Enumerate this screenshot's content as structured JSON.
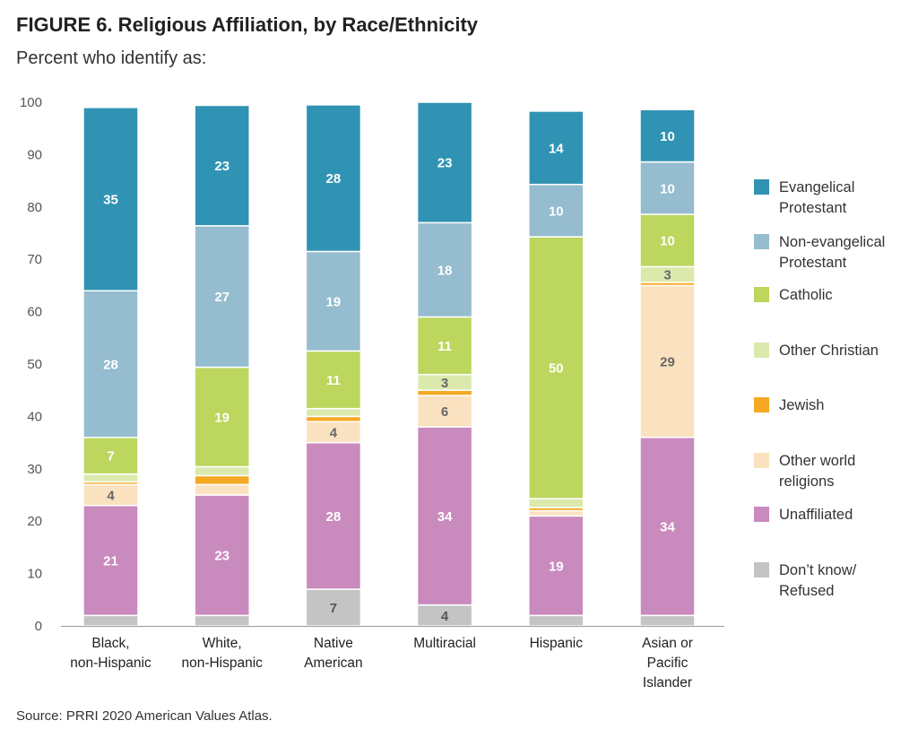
{
  "chart_data": {
    "type": "bar",
    "stacked": true,
    "title": "FIGURE 6.  Religious Affiliation, by Race/Ethnicity",
    "subtitle": "Percent who identify as:",
    "source": "Source: PRRI 2020 American Values Atlas.",
    "ylim": [
      0,
      100
    ],
    "yticks": [
      0,
      10,
      20,
      30,
      40,
      50,
      60,
      70,
      80,
      90,
      100
    ],
    "categories": [
      [
        "Black,",
        "non-Hispanic"
      ],
      [
        "White,",
        "non-Hispanic"
      ],
      [
        "Native",
        "American"
      ],
      [
        "Multiracial"
      ],
      [
        "Hispanic"
      ],
      [
        "Asian or",
        "Pacific",
        "Islander"
      ]
    ],
    "series": [
      {
        "name": [
          "Don’t know/",
          "Refused"
        ],
        "color": "#c4c4c4",
        "label_color": "#555555",
        "values": [
          2,
          2,
          7,
          4,
          2,
          2
        ],
        "labels": [
          "",
          "",
          "7",
          "4",
          "",
          ""
        ]
      },
      {
        "name": [
          "Unaffiliated"
        ],
        "color": "#c98abe",
        "label_color": "#ffffff",
        "values": [
          21,
          23,
          28,
          34,
          19,
          34
        ],
        "labels": [
          "21",
          "23",
          "28",
          "34",
          "19",
          "34"
        ]
      },
      {
        "name": [
          "Other world",
          "religions"
        ],
        "color": "#fae2c0",
        "label_color": "#666666",
        "values": [
          4,
          2,
          4,
          6,
          1,
          29
        ],
        "labels": [
          "4",
          "",
          "4",
          "6",
          "",
          "29"
        ]
      },
      {
        "name": [
          "Jewish"
        ],
        "color": "#f5a821",
        "label_color": "#555555",
        "values": [
          0.5,
          1.7,
          1,
          1,
          0.6,
          0.6
        ],
        "labels": [
          "",
          "",
          "",
          "",
          "",
          ""
        ]
      },
      {
        "name": [
          "Other Christian"
        ],
        "color": "#dbe9ad",
        "label_color": "#666666",
        "values": [
          1.5,
          1.7,
          1.5,
          3,
          1.7,
          3
        ],
        "labels": [
          "",
          "",
          "",
          "3",
          "",
          "3"
        ]
      },
      {
        "name": [
          "Catholic"
        ],
        "color": "#bcd65e",
        "label_color": "#ffffff",
        "values": [
          7,
          19,
          11,
          11,
          50,
          10
        ],
        "labels": [
          "7",
          "19",
          "11",
          "11",
          "50",
          "10"
        ]
      },
      {
        "name": [
          "Non-evangelical",
          "Protestant"
        ],
        "color": "#95bccf",
        "label_color": "#ffffff",
        "values": [
          28,
          27,
          19,
          18,
          10,
          10
        ],
        "labels": [
          "28",
          "27",
          "19",
          "18",
          "10",
          "10"
        ]
      },
      {
        "name": [
          "Evangelical",
          "Protestant"
        ],
        "color": "#3093b3",
        "label_color": "#ffffff",
        "values": [
          35,
          23,
          28,
          23,
          14,
          10
        ],
        "labels": [
          "35",
          "23",
          "28",
          "23",
          "14",
          "10"
        ]
      }
    ]
  }
}
